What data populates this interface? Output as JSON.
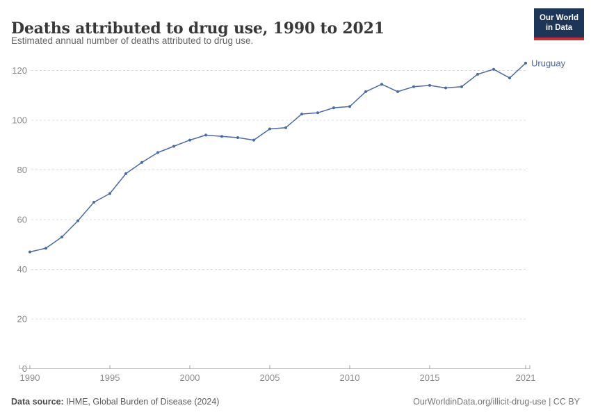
{
  "header": {
    "title": "Deaths attributed to drug use, 1990 to 2021",
    "subtitle": "Estimated annual number of deaths attributed to drug use.",
    "logo": {
      "line1": "Our World",
      "line2": "in Data",
      "bg_color": "#1d3558",
      "accent_color": "#cb2d30"
    }
  },
  "chart_data": {
    "type": "line",
    "title": "Deaths attributed to drug use, 1990 to 2021",
    "xlabel": "",
    "ylabel": "",
    "x_ticks": [
      1990,
      1995,
      2000,
      2005,
      2010,
      2015,
      2021
    ],
    "y_ticks": [
      0,
      20,
      40,
      60,
      80,
      100,
      120
    ],
    "xlim": [
      1990,
      2021
    ],
    "ylim": [
      0,
      125
    ],
    "grid": "dashed-horizontal",
    "legend_position": "end-of-line-label",
    "series": [
      {
        "name": "Uruguay",
        "color": "#4a6aa5",
        "x": [
          1990,
          1991,
          1992,
          1993,
          1994,
          1995,
          1996,
          1997,
          1998,
          1999,
          2000,
          2001,
          2002,
          2003,
          2004,
          2005,
          2006,
          2007,
          2008,
          2009,
          2010,
          2011,
          2012,
          2013,
          2014,
          2015,
          2016,
          2017,
          2018,
          2019,
          2020,
          2021
        ],
        "values": [
          47,
          48.5,
          53,
          59.5,
          67,
          70.5,
          78.5,
          83,
          87,
          89.5,
          92,
          94,
          93.5,
          93,
          92,
          96.5,
          97,
          102.5,
          103,
          105,
          105.5,
          111.5,
          114.5,
          111.5,
          113.5,
          114,
          113,
          113.5,
          118.5,
          120.5,
          117,
          123
        ]
      }
    ],
    "colors": {
      "gridline": "#dcdcdc",
      "axis_line": "#bcbcbc",
      "tick": "#9c9c9c",
      "tick_label": "#8a8a8a"
    }
  },
  "footer": {
    "source_label": "Data source:",
    "source_value": " IHME, Global Burden of Disease (2024)",
    "credit": "OurWorldinData.org/illicit-drug-use | CC BY"
  }
}
